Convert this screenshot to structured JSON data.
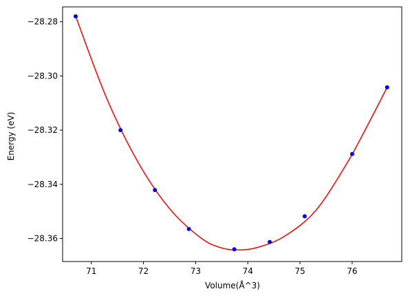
{
  "chart_data": {
    "type": "scatter",
    "title": "",
    "xlabel": "Volume(Å^3)",
    "ylabel": "Energy (eV)",
    "xlim": [
      70.45,
      76.95
    ],
    "ylim": [
      -28.3685,
      -28.2745
    ],
    "xticks": [
      71,
      72,
      73,
      74,
      75,
      76
    ],
    "yticks": [
      -28.28,
      -28.3,
      -28.32,
      -28.34,
      -28.36
    ],
    "ytick_labels": [
      "−28.28",
      "−28.30",
      "−28.32",
      "−28.34",
      "−28.36"
    ],
    "grid": false,
    "legend": "none",
    "colors": {
      "points": "#0000ff",
      "fit": "#ff0000",
      "axes": "#000000",
      "background": "#ffffff"
    },
    "series": [
      {
        "kind": "points",
        "x": [
          70.7,
          71.56,
          72.22,
          72.87,
          73.74,
          74.42,
          75.09,
          76.0,
          76.67
        ],
        "y": [
          -28.278,
          -28.32,
          -28.3421,
          -28.3565,
          -28.364,
          -28.3613,
          -28.3518,
          -28.3288,
          -28.3042
        ]
      },
      {
        "kind": "fit",
        "x": [
          70.7,
          71.3,
          71.9,
          72.5,
          73.1,
          73.5,
          73.85,
          74.2,
          74.7,
          75.3,
          75.9,
          76.3,
          76.67
        ],
        "y": [
          -28.278,
          -28.3085,
          -28.332,
          -28.349,
          -28.3598,
          -28.3635,
          -28.3642,
          -28.3632,
          -28.3592,
          -28.3497,
          -28.3322,
          -28.318,
          -28.3042
        ]
      }
    ]
  }
}
